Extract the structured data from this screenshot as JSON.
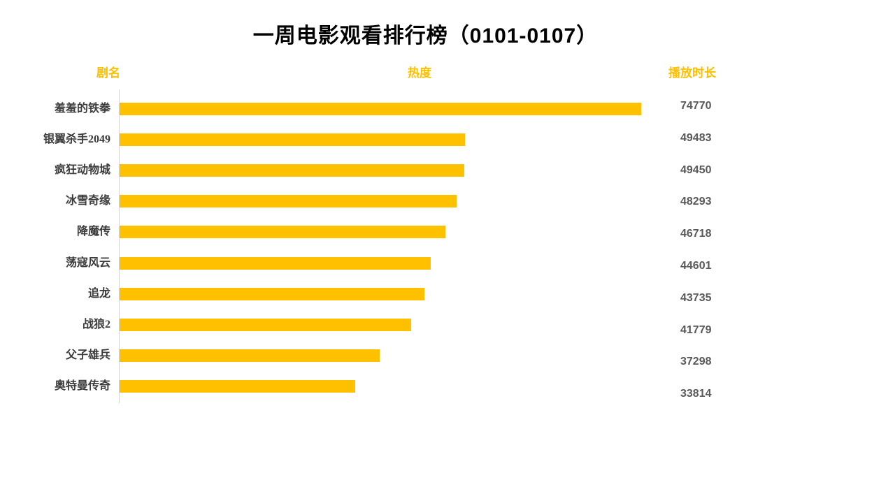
{
  "title": "一周电影观看排行榜（0101-0107）",
  "columns": {
    "name": "剧名",
    "heat": "热度",
    "duration": "播放时长"
  },
  "colors": {
    "accent": "#FFC000",
    "title_text": "#000000",
    "category_text": "#3B3B3B",
    "value_text": "#595959",
    "axis_line": "#D6D6D6"
  },
  "chart_data": {
    "type": "bar",
    "orientation": "horizontal",
    "title": "一周电影观看排行榜（0101-0107）",
    "series_name": "热度",
    "value_column_label": "播放时长",
    "categories": [
      "羞羞的铁拳",
      "银翼杀手2049",
      "疯狂动物城",
      "冰雪奇缘",
      "降魔传",
      "荡寇风云",
      "追龙",
      "战狼2",
      "父子雄兵",
      "奥特曼传奇"
    ],
    "values": [
      74770,
      49483,
      49450,
      48293,
      46718,
      44601,
      43735,
      41779,
      37298,
      33814
    ],
    "xlim": [
      0,
      75000
    ],
    "bar_color": "#FFC000",
    "grid": false,
    "legend": false,
    "sorted": "descending"
  }
}
